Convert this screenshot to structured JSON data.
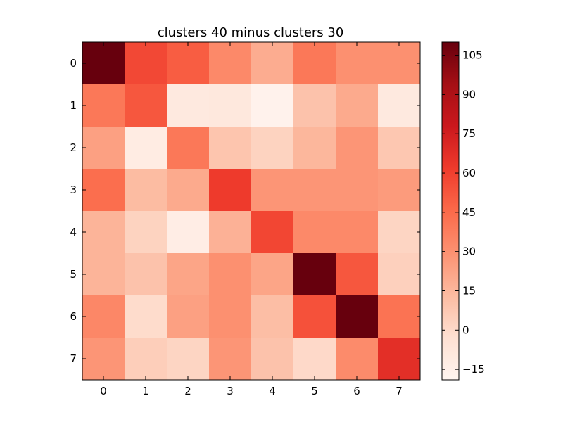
{
  "chart_data": {
    "type": "heatmap",
    "title": "clusters 40  minus clusters 30",
    "x_labels": [
      "0",
      "1",
      "2",
      "3",
      "4",
      "5",
      "6",
      "7"
    ],
    "y_labels": [
      "0",
      "1",
      "2",
      "3",
      "4",
      "5",
      "6",
      "7"
    ],
    "values": [
      [
        110,
        57,
        50,
        33,
        19,
        40,
        30,
        30
      ],
      [
        40,
        52,
        -10,
        -9,
        -17,
        10,
        20,
        -10
      ],
      [
        24,
        -12,
        40,
        9,
        3,
        15,
        28,
        8
      ],
      [
        44,
        13,
        20,
        62,
        28,
        28,
        28,
        26
      ],
      [
        16,
        3,
        -13,
        17,
        58,
        33,
        33,
        2
      ],
      [
        16,
        10,
        22,
        30,
        22,
        110,
        52,
        4
      ],
      [
        34,
        -1,
        24,
        30,
        12,
        54,
        110,
        42
      ],
      [
        28,
        5,
        2,
        28,
        10,
        0,
        32,
        67
      ]
    ],
    "colormap": "Reds",
    "colors": [
      "#fff5f0",
      "#fee0d2",
      "#fcbba1",
      "#fc9272",
      "#fb6a4a",
      "#ef3b2c",
      "#cb181d",
      "#a50f15",
      "#67000d"
    ],
    "vmin": -19,
    "vmax": 110,
    "colorbar": {
      "ticks": [
        105,
        90,
        75,
        60,
        45,
        30,
        15,
        0,
        -15
      ],
      "tick_labels": [
        "105",
        "90",
        "75",
        "60",
        "45",
        "30",
        "15",
        "0",
        "−15"
      ]
    },
    "grid": false,
    "legend": "colorbar-right"
  }
}
